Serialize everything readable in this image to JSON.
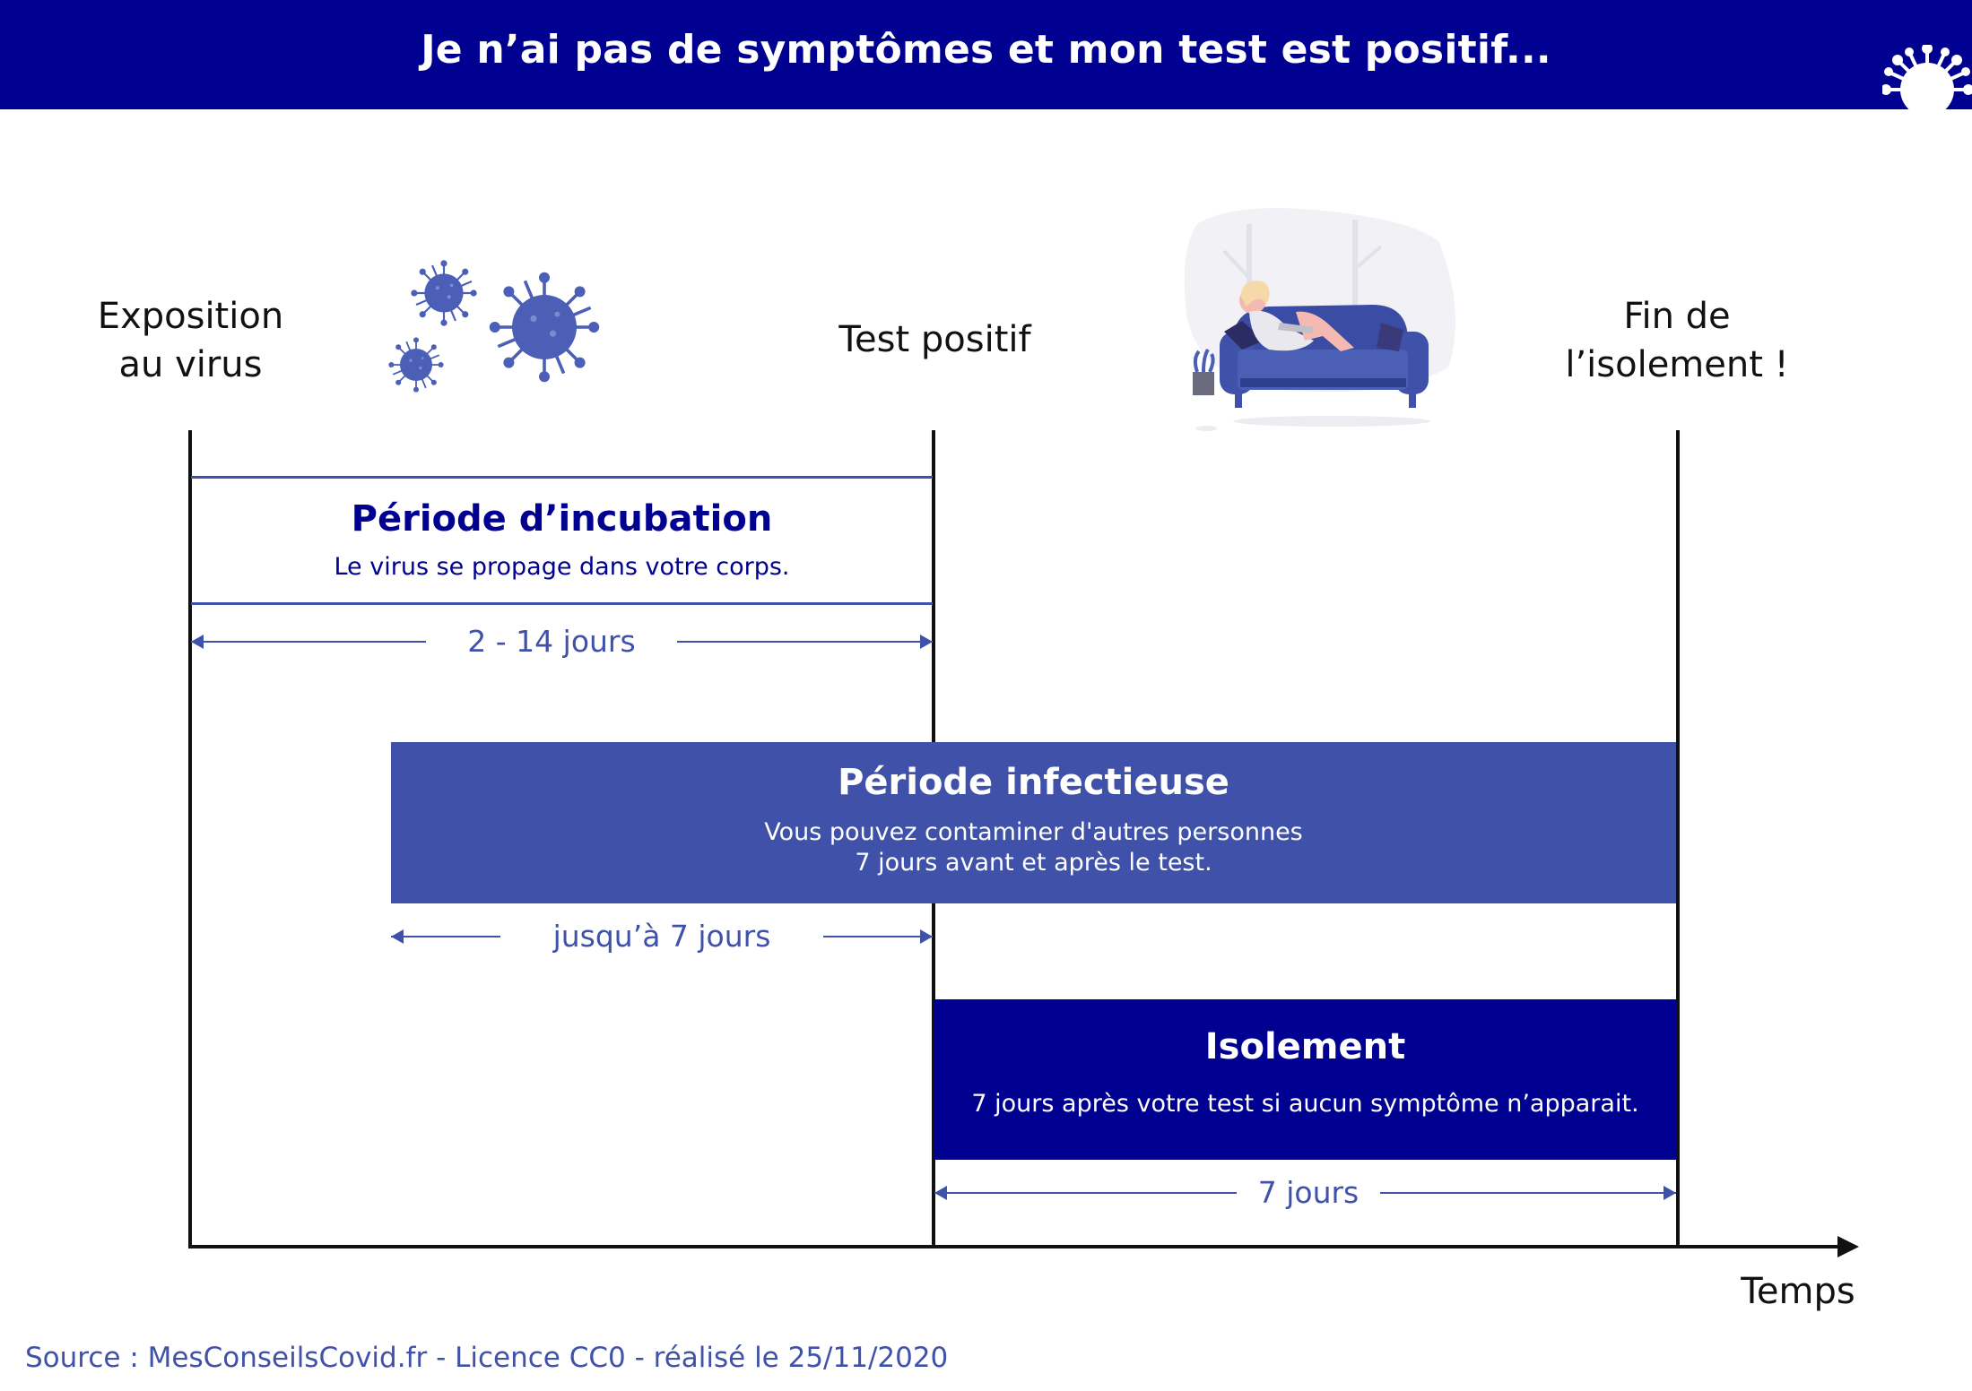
{
  "header": {
    "title": "Je n’ai pas de symptômes et mon test est positif..."
  },
  "milestones": {
    "exposition": {
      "line1": "Exposition",
      "line2": "au virus"
    },
    "test": "Test positif",
    "fin": {
      "line1": "Fin de",
      "line2": "l’isolement !"
    }
  },
  "axis_label": "Temps",
  "periods": {
    "incubation": {
      "title": "Période d’incubation",
      "description": "Le virus se propage dans votre corps.",
      "duration": "2 - 14 jours"
    },
    "infectieuse": {
      "title": "Période infectieuse",
      "description_line1": "Vous pouvez contaminer d'autres personnes",
      "description_line2": "7 jours avant et après le test.",
      "duration": "jusqu’à 7 jours"
    },
    "isolement": {
      "title": "Isolement",
      "description": "7 jours après votre test si aucun symptôme n’apparait.",
      "duration": "7 jours"
    }
  },
  "source": "Source : MesConseilsCovid.fr - Licence CC0 - réalisé le 25/11/2020",
  "colors": {
    "navy": "#000091",
    "blue": "#3f51a9",
    "text": "#111111"
  },
  "icons": [
    "virus-icon",
    "virus-cluster-icon",
    "sofa-illustration"
  ]
}
